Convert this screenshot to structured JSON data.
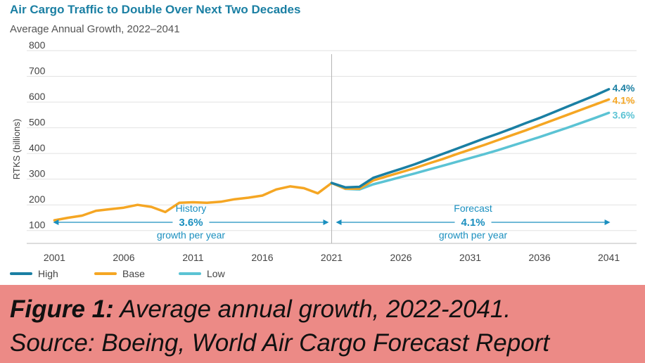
{
  "chart_data": {
    "type": "line",
    "title": "Air Cargo Traffic to Double Over Next Two Decades",
    "subtitle": "Average Annual Growth, 2022–2041",
    "ylabel": "RTKS (billions)",
    "xlabel": "",
    "xlim": [
      1999,
      2043
    ],
    "ylim": [
      50,
      800
    ],
    "yticks": [
      100,
      200,
      300,
      400,
      500,
      600,
      700,
      800
    ],
    "xticks": [
      2001,
      2006,
      2011,
      2016,
      2021,
      2026,
      2031,
      2036,
      2041
    ],
    "divider_x": 2021,
    "grid": "horizontal",
    "legend_position": "bottom-left",
    "series": [
      {
        "name": "High",
        "color": "#1a7fa3",
        "end_label": "4.4%",
        "x": [
          2021,
          2022,
          2023,
          2024,
          2025,
          2026,
          2027,
          2028,
          2029,
          2030,
          2031,
          2032,
          2033,
          2034,
          2035,
          2036,
          2037,
          2038,
          2039,
          2040,
          2041
        ],
        "values": [
          285,
          268,
          270,
          305,
          323,
          340,
          358,
          378,
          398,
          418,
          438,
          458,
          477,
          497,
          518,
          538,
          560,
          582,
          604,
          626,
          650
        ]
      },
      {
        "name": "Base",
        "color": "#f5a623",
        "end_label": "4.1%",
        "x": [
          2001,
          2002,
          2003,
          2004,
          2005,
          2006,
          2007,
          2008,
          2009,
          2010,
          2011,
          2012,
          2013,
          2014,
          2015,
          2016,
          2017,
          2018,
          2019,
          2020,
          2021,
          2022,
          2023,
          2024,
          2025,
          2026,
          2027,
          2028,
          2029,
          2030,
          2031,
          2032,
          2033,
          2034,
          2035,
          2036,
          2037,
          2038,
          2039,
          2040,
          2041
        ],
        "values": [
          140,
          150,
          158,
          177,
          183,
          189,
          200,
          192,
          172,
          208,
          210,
          208,
          212,
          222,
          228,
          236,
          260,
          272,
          265,
          245,
          285,
          263,
          263,
          295,
          311,
          327,
          343,
          361,
          378,
          397,
          415,
          433,
          452,
          471,
          490,
          510,
          530,
          550,
          570,
          590,
          610
        ]
      },
      {
        "name": "Low",
        "color": "#5bc3d4",
        "end_label": "3.6%",
        "x": [
          2021,
          2022,
          2023,
          2024,
          2025,
          2026,
          2027,
          2028,
          2029,
          2030,
          2031,
          2032,
          2033,
          2034,
          2035,
          2036,
          2037,
          2038,
          2039,
          2040,
          2041
        ],
        "values": [
          285,
          262,
          260,
          280,
          294,
          308,
          322,
          337,
          352,
          367,
          382,
          397,
          413,
          430,
          447,
          464,
          482,
          500,
          519,
          538,
          558
        ]
      }
    ],
    "annotations": [
      {
        "label": "History",
        "value": "3.6%",
        "note": "growth per year",
        "range": [
          2001,
          2021
        ]
      },
      {
        "label": "Forecast",
        "value": "4.1%",
        "note": "growth per year",
        "range": [
          2021,
          2041
        ]
      }
    ]
  },
  "caption": {
    "figure_label": "Figure 1:",
    "line1_text": " Average annual growth, 2022-2041.",
    "line2_text": "Source: Boeing, World Air Cargo Forecast Report"
  }
}
